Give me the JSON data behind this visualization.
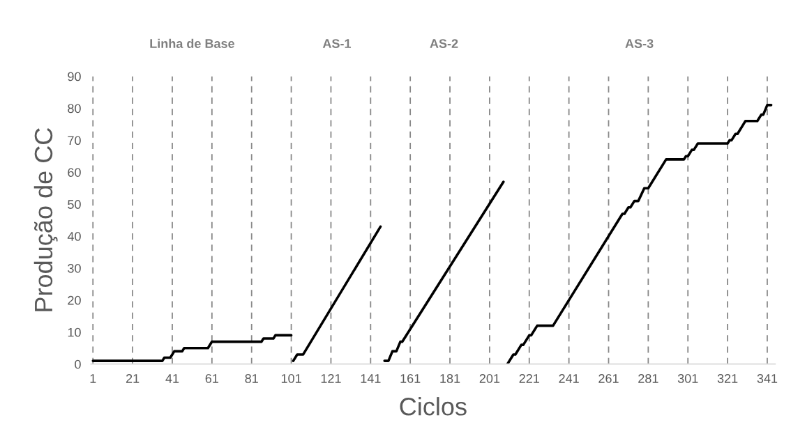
{
  "chart_data": {
    "type": "line",
    "xlabel": "Ciclos",
    "ylabel": "Produção de CC",
    "annotations": [
      "Linha de Base",
      "AS-1",
      "AS-2",
      "AS-3"
    ],
    "xlim": [
      0,
      345
    ],
    "xticks": [
      1,
      21,
      41,
      61,
      81,
      101,
      121,
      141,
      161,
      181,
      201,
      221,
      241,
      261,
      281,
      301,
      321,
      341
    ],
    "ylim": [
      0,
      90
    ],
    "yticks": [
      0,
      10,
      20,
      30,
      40,
      50,
      60,
      70,
      80,
      90
    ],
    "grid": "x",
    "marker": "none",
    "line_style": "solid",
    "series": [
      {
        "color": "#000000",
        "x": [
          1,
          36,
          37,
          40,
          41,
          42,
          46,
          47,
          59,
          61,
          86,
          87,
          92,
          93,
          101
        ],
        "values": [
          1,
          1,
          2,
          2,
          3,
          4,
          4,
          5,
          5,
          7,
          7,
          8,
          8,
          9,
          9
        ]
      },
      {
        "color": "#000000",
        "x": [
          102,
          104,
          107,
          146
        ],
        "values": [
          1,
          3,
          3,
          43
        ]
      },
      {
        "color": "#000000",
        "x": [
          148,
          150,
          152,
          154,
          156,
          157,
          208
        ],
        "values": [
          1,
          1,
          4,
          4,
          7,
          7,
          57
        ]
      },
      {
        "color": "#000000",
        "x": [
          210,
          213,
          214,
          217,
          218,
          221,
          222,
          225,
          233,
          267,
          268,
          269,
          271,
          272,
          274,
          276,
          279,
          281,
          290,
          299,
          300,
          301,
          303,
          304,
          306,
          321,
          322,
          323,
          325,
          326,
          329,
          330,
          336,
          338,
          339,
          341,
          343
        ],
        "values": [
          0,
          3,
          3,
          6,
          6,
          9,
          9,
          12,
          12,
          46,
          47,
          47,
          49,
          49,
          51,
          51,
          55,
          55,
          64,
          64,
          65,
          65,
          67,
          67,
          69,
          69,
          70,
          70,
          72,
          72,
          75,
          76,
          76,
          78,
          78,
          81,
          81
        ]
      }
    ]
  }
}
